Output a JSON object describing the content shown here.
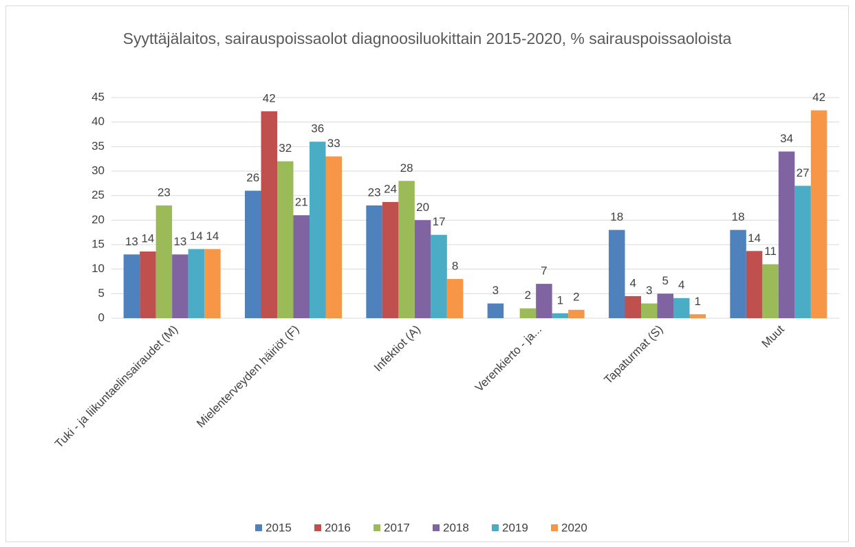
{
  "chart_data": {
    "type": "bar",
    "title": "Syyttäjälaitos, sairauspoissaolot diagnoosiluokittain 2015-2020, % sairauspoissaoloista",
    "categories": [
      "Tuki - ja liikuntaelinsairaudet (M)",
      "Mielenterveyden häiriöt (F)",
      "Infektiot (A)",
      "Verenkierto - ja...",
      "Tapaturmat (S)",
      "Muut"
    ],
    "series": [
      {
        "name": "2015",
        "color": "#4f81bd",
        "values": [
          13,
          26,
          23,
          3,
          18,
          18
        ]
      },
      {
        "name": "2016",
        "color": "#c0504d",
        "values": [
          13.6,
          42.2,
          23.7,
          null,
          4.5,
          13.7
        ],
        "value_labels": [
          "14",
          "42",
          "24",
          null,
          "4",
          "14"
        ]
      },
      {
        "name": "2017",
        "color": "#9bbb59",
        "values": [
          23,
          32,
          28,
          2,
          3,
          11
        ]
      },
      {
        "name": "2018",
        "color": "#8064a2",
        "values": [
          13,
          21,
          20,
          7,
          5,
          34
        ]
      },
      {
        "name": "2019",
        "color": "#4bacc6",
        "values": [
          14.1,
          36,
          17,
          1,
          4.1,
          27
        ],
        "value_labels": [
          "14",
          "36",
          "17",
          "1",
          "4",
          "27"
        ]
      },
      {
        "name": "2020",
        "color": "#f79646",
        "values": [
          14.1,
          33,
          8,
          1.7,
          0.8,
          42.4
        ],
        "value_labels": [
          "14",
          "33",
          "8",
          "2",
          "1",
          "42"
        ]
      }
    ],
    "ylim": [
      0,
      45
    ],
    "yticks": [
      0,
      5,
      10,
      15,
      20,
      25,
      30,
      35,
      40,
      45
    ],
    "grid": true,
    "legend": "bottom"
  }
}
